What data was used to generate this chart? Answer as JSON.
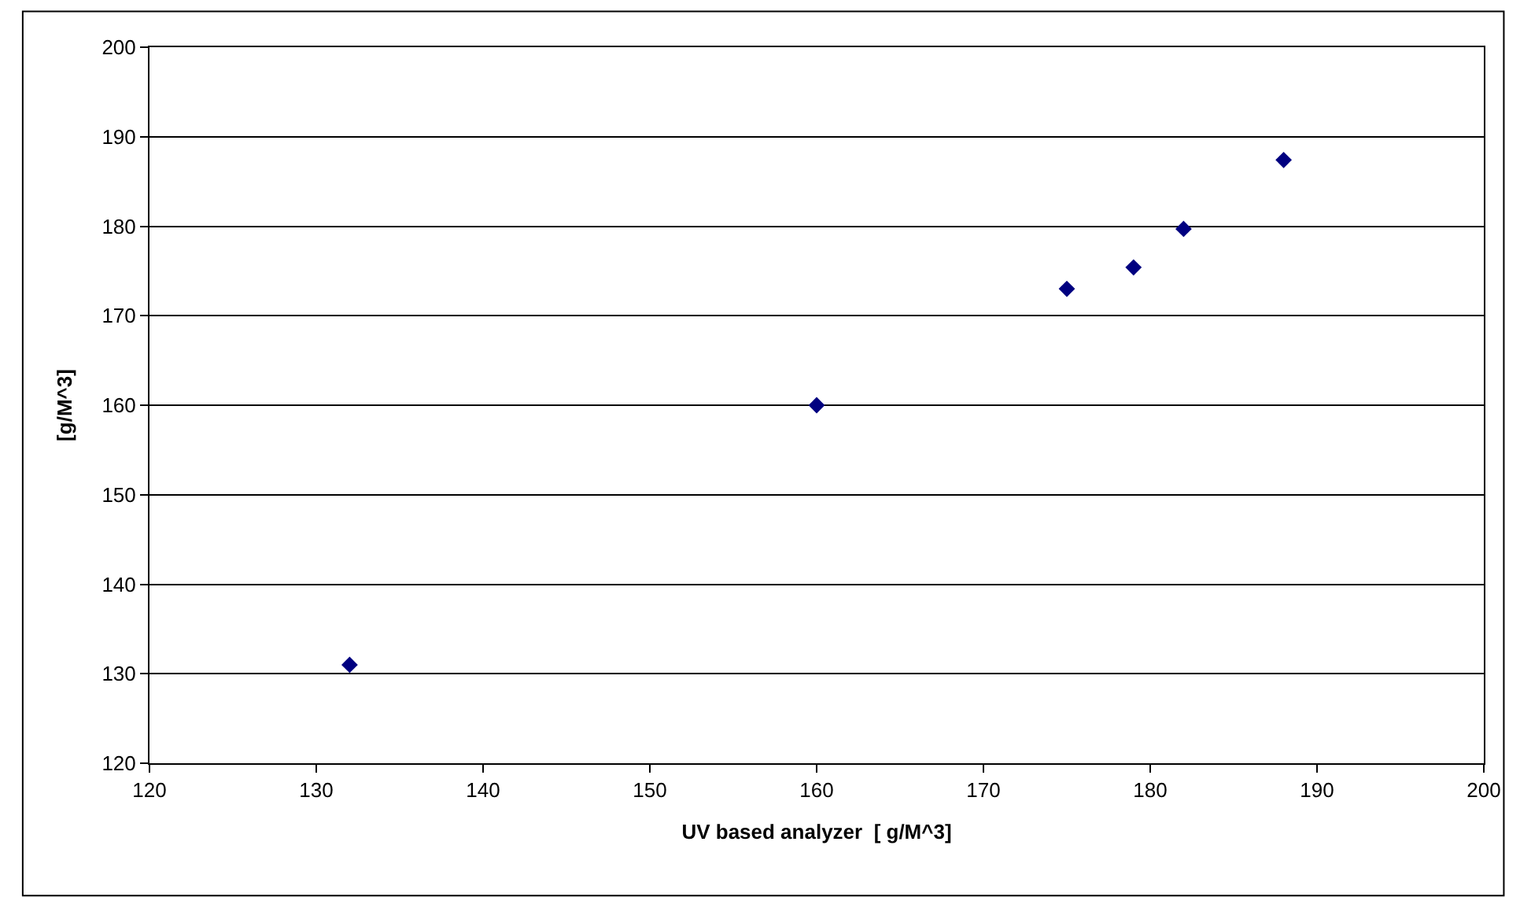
{
  "chart_data": {
    "type": "scatter",
    "xlabel": "UV based analyzer  [ g/M^3]",
    "ylabel": "[g/M^3]",
    "x": [
      132,
      160,
      175,
      179,
      182,
      188
    ],
    "series": [
      {
        "color": "#000080",
        "values": [
          131,
          160,
          173,
          175.4,
          179.7,
          187.4
        ]
      }
    ],
    "xlim": [
      120,
      200
    ],
    "xticks": [
      120,
      130,
      140,
      150,
      160,
      170,
      180,
      190,
      200
    ],
    "ylim": [
      120,
      200
    ],
    "yticks": [
      120,
      130,
      140,
      150,
      160,
      170,
      180,
      190,
      200
    ],
    "grid": "y",
    "marker": "diamond"
  }
}
